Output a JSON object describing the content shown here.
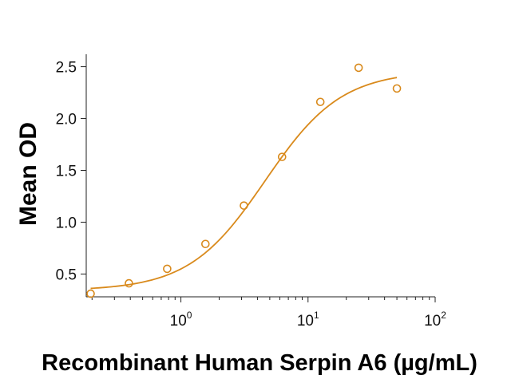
{
  "chart_data": {
    "type": "scatter",
    "title": "",
    "xlabel": "Recombinant Human Serpin A6 (µg/mL)",
    "ylabel": "Mean OD",
    "x_scale": "log",
    "xlim": [
      0.18,
      100
    ],
    "ylim": [
      0.28,
      2.62
    ],
    "x_ticks": [
      {
        "value": 1,
        "base": "10",
        "exp": "0"
      },
      {
        "value": 10,
        "base": "10",
        "exp": "1"
      },
      {
        "value": 100,
        "base": "10",
        "exp": "2"
      }
    ],
    "y_ticks": [
      {
        "value": 0.5,
        "label": "0.5"
      },
      {
        "value": 1.0,
        "label": "1.0"
      },
      {
        "value": 1.5,
        "label": "1.5"
      },
      {
        "value": 2.0,
        "label": "2.0"
      },
      {
        "value": 2.5,
        "label": "2.5"
      }
    ],
    "grid": false,
    "color": "#d98a1c",
    "series": [
      {
        "points": [
          {
            "x": 0.195,
            "y": 0.31
          },
          {
            "x": 0.39,
            "y": 0.41
          },
          {
            "x": 0.78,
            "y": 0.55
          },
          {
            "x": 1.56,
            "y": 0.79
          },
          {
            "x": 3.13,
            "y": 1.16
          },
          {
            "x": 6.25,
            "y": 1.63
          },
          {
            "x": 12.5,
            "y": 2.16
          },
          {
            "x": 25,
            "y": 2.49
          },
          {
            "x": 50,
            "y": 2.29
          }
        ]
      }
    ],
    "fit": {
      "model": "4PL",
      "bottom": 0.34,
      "top": 2.46,
      "ec50": 4.6,
      "hill": 1.45,
      "x_range": [
        0.195,
        50
      ]
    }
  }
}
